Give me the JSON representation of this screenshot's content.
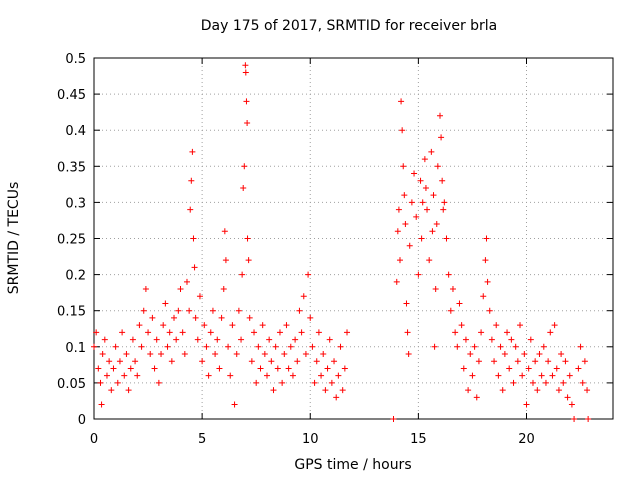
{
  "chart_data": {
    "type": "scatter",
    "title": "Day 175 of 2017, SRMTID for receiver brla",
    "xlabel": "GPS time / hours",
    "ylabel": "SRMTID / TECUs",
    "xlim": [
      0,
      24
    ],
    "ylim": [
      0,
      0.5
    ],
    "x_ticks": [
      0,
      5,
      10,
      15,
      20
    ],
    "x_tick_labels": [
      "0",
      "5",
      "10",
      "15",
      "20"
    ],
    "y_ticks": [
      0,
      0.05,
      0.1,
      0.15,
      0.2,
      0.25,
      0.3,
      0.35,
      0.4,
      0.45,
      0.5
    ],
    "y_tick_labels": [
      "0",
      "0.05",
      "0.1",
      "0.15",
      "0.2",
      "0.25",
      "0.3",
      "0.35",
      "0.4",
      "0.45",
      "0.5"
    ],
    "grid": true,
    "marker": "+",
    "series": [
      {
        "name": "SRMTID",
        "color": "#ff0000",
        "points": [
          [
            0.0,
            0.1
          ],
          [
            0.1,
            0.12
          ],
          [
            0.2,
            0.07
          ],
          [
            0.3,
            0.05
          ],
          [
            0.35,
            0.02
          ],
          [
            0.4,
            0.09
          ],
          [
            0.5,
            0.11
          ],
          [
            0.6,
            0.06
          ],
          [
            0.7,
            0.08
          ],
          [
            0.8,
            0.04
          ],
          [
            0.9,
            0.07
          ],
          [
            1.0,
            0.1
          ],
          [
            1.1,
            0.05
          ],
          [
            1.2,
            0.08
          ],
          [
            1.3,
            0.12
          ],
          [
            1.4,
            0.06
          ],
          [
            1.5,
            0.09
          ],
          [
            1.6,
            0.04
          ],
          [
            1.7,
            0.07
          ],
          [
            1.8,
            0.11
          ],
          [
            1.9,
            0.08
          ],
          [
            2.0,
            0.06
          ],
          [
            2.1,
            0.13
          ],
          [
            2.2,
            0.1
          ],
          [
            2.3,
            0.15
          ],
          [
            2.4,
            0.18
          ],
          [
            2.5,
            0.12
          ],
          [
            2.6,
            0.09
          ],
          [
            2.7,
            0.14
          ],
          [
            2.8,
            0.07
          ],
          [
            2.9,
            0.11
          ],
          [
            3.0,
            0.05
          ],
          [
            3.1,
            0.09
          ],
          [
            3.2,
            0.13
          ],
          [
            3.3,
            0.16
          ],
          [
            3.4,
            0.1
          ],
          [
            3.5,
            0.12
          ],
          [
            3.6,
            0.08
          ],
          [
            3.7,
            0.14
          ],
          [
            3.8,
            0.11
          ],
          [
            3.9,
            0.15
          ],
          [
            4.0,
            0.18
          ],
          [
            4.1,
            0.12
          ],
          [
            4.2,
            0.09
          ],
          [
            4.3,
            0.19
          ],
          [
            4.4,
            0.15
          ],
          [
            4.45,
            0.29
          ],
          [
            4.5,
            0.33
          ],
          [
            4.55,
            0.37
          ],
          [
            4.6,
            0.25
          ],
          [
            4.65,
            0.21
          ],
          [
            4.7,
            0.14
          ],
          [
            4.8,
            0.11
          ],
          [
            4.9,
            0.17
          ],
          [
            5.0,
            0.08
          ],
          [
            5.1,
            0.13
          ],
          [
            5.2,
            0.1
          ],
          [
            5.3,
            0.06
          ],
          [
            5.4,
            0.12
          ],
          [
            5.5,
            0.15
          ],
          [
            5.6,
            0.09
          ],
          [
            5.7,
            0.11
          ],
          [
            5.8,
            0.07
          ],
          [
            5.9,
            0.14
          ],
          [
            6.0,
            0.18
          ],
          [
            6.05,
            0.26
          ],
          [
            6.1,
            0.22
          ],
          [
            6.2,
            0.1
          ],
          [
            6.3,
            0.06
          ],
          [
            6.4,
            0.13
          ],
          [
            6.5,
            0.02
          ],
          [
            6.6,
            0.09
          ],
          [
            6.7,
            0.15
          ],
          [
            6.8,
            0.11
          ],
          [
            6.85,
            0.2
          ],
          [
            6.9,
            0.32
          ],
          [
            6.95,
            0.35
          ],
          [
            7.0,
            0.49
          ],
          [
            7.02,
            0.48
          ],
          [
            7.05,
            0.44
          ],
          [
            7.08,
            0.41
          ],
          [
            7.1,
            0.25
          ],
          [
            7.15,
            0.22
          ],
          [
            7.2,
            0.14
          ],
          [
            7.3,
            0.08
          ],
          [
            7.4,
            0.12
          ],
          [
            7.5,
            0.05
          ],
          [
            7.6,
            0.1
          ],
          [
            7.7,
            0.07
          ],
          [
            7.8,
            0.13
          ],
          [
            7.9,
            0.09
          ],
          [
            8.0,
            0.06
          ],
          [
            8.1,
            0.11
          ],
          [
            8.2,
            0.08
          ],
          [
            8.3,
            0.04
          ],
          [
            8.4,
            0.1
          ],
          [
            8.5,
            0.07
          ],
          [
            8.6,
            0.12
          ],
          [
            8.7,
            0.05
          ],
          [
            8.8,
            0.09
          ],
          [
            8.9,
            0.13
          ],
          [
            9.0,
            0.07
          ],
          [
            9.1,
            0.1
          ],
          [
            9.2,
            0.06
          ],
          [
            9.3,
            0.11
          ],
          [
            9.4,
            0.08
          ],
          [
            9.5,
            0.15
          ],
          [
            9.6,
            0.12
          ],
          [
            9.7,
            0.17
          ],
          [
            9.8,
            0.09
          ],
          [
            9.9,
            0.2
          ],
          [
            10.0,
            0.14
          ],
          [
            10.1,
            0.1
          ],
          [
            10.2,
            0.05
          ],
          [
            10.3,
            0.08
          ],
          [
            10.4,
            0.12
          ],
          [
            10.5,
            0.06
          ],
          [
            10.6,
            0.09
          ],
          [
            10.7,
            0.04
          ],
          [
            10.8,
            0.07
          ],
          [
            10.9,
            0.11
          ],
          [
            11.0,
            0.05
          ],
          [
            11.1,
            0.08
          ],
          [
            11.2,
            0.03
          ],
          [
            11.3,
            0.06
          ],
          [
            11.4,
            0.1
          ],
          [
            11.5,
            0.04
          ],
          [
            11.6,
            0.07
          ],
          [
            11.7,
            0.12
          ],
          [
            13.85,
            0.0
          ],
          [
            14.0,
            0.19
          ],
          [
            14.05,
            0.26
          ],
          [
            14.1,
            0.29
          ],
          [
            14.15,
            0.22
          ],
          [
            14.2,
            0.44
          ],
          [
            14.25,
            0.4
          ],
          [
            14.3,
            0.35
          ],
          [
            14.35,
            0.31
          ],
          [
            14.4,
            0.27
          ],
          [
            14.45,
            0.16
          ],
          [
            14.5,
            0.12
          ],
          [
            14.55,
            0.09
          ],
          [
            14.6,
            0.24
          ],
          [
            14.7,
            0.3
          ],
          [
            14.8,
            0.34
          ],
          [
            14.9,
            0.28
          ],
          [
            15.0,
            0.2
          ],
          [
            15.1,
            0.33
          ],
          [
            15.15,
            0.25
          ],
          [
            15.2,
            0.3
          ],
          [
            15.3,
            0.36
          ],
          [
            15.35,
            0.32
          ],
          [
            15.4,
            0.29
          ],
          [
            15.5,
            0.22
          ],
          [
            15.6,
            0.37
          ],
          [
            15.65,
            0.26
          ],
          [
            15.7,
            0.31
          ],
          [
            15.75,
            0.1
          ],
          [
            15.8,
            0.18
          ],
          [
            15.85,
            0.27
          ],
          [
            15.9,
            0.35
          ],
          [
            16.0,
            0.42
          ],
          [
            16.05,
            0.39
          ],
          [
            16.1,
            0.33
          ],
          [
            16.15,
            0.29
          ],
          [
            16.2,
            0.3
          ],
          [
            16.3,
            0.25
          ],
          [
            16.4,
            0.2
          ],
          [
            16.5,
            0.15
          ],
          [
            16.6,
            0.18
          ],
          [
            16.7,
            0.12
          ],
          [
            16.8,
            0.1
          ],
          [
            16.9,
            0.16
          ],
          [
            17.0,
            0.13
          ],
          [
            17.1,
            0.07
          ],
          [
            17.2,
            0.11
          ],
          [
            17.3,
            0.04
          ],
          [
            17.4,
            0.09
          ],
          [
            17.5,
            0.06
          ],
          [
            17.6,
            0.1
          ],
          [
            17.7,
            0.03
          ],
          [
            17.8,
            0.08
          ],
          [
            17.9,
            0.12
          ],
          [
            18.0,
            0.17
          ],
          [
            18.1,
            0.22
          ],
          [
            18.15,
            0.25
          ],
          [
            18.2,
            0.19
          ],
          [
            18.3,
            0.15
          ],
          [
            18.4,
            0.11
          ],
          [
            18.5,
            0.08
          ],
          [
            18.6,
            0.13
          ],
          [
            18.7,
            0.06
          ],
          [
            18.8,
            0.1
          ],
          [
            18.9,
            0.04
          ],
          [
            19.0,
            0.09
          ],
          [
            19.1,
            0.12
          ],
          [
            19.2,
            0.07
          ],
          [
            19.3,
            0.11
          ],
          [
            19.4,
            0.05
          ],
          [
            19.5,
            0.1
          ],
          [
            19.6,
            0.08
          ],
          [
            19.7,
            0.13
          ],
          [
            19.8,
            0.06
          ],
          [
            19.9,
            0.09
          ],
          [
            20.0,
            0.02
          ],
          [
            20.1,
            0.07
          ],
          [
            20.2,
            0.11
          ],
          [
            20.3,
            0.05
          ],
          [
            20.4,
            0.08
          ],
          [
            20.5,
            0.04
          ],
          [
            20.6,
            0.09
          ],
          [
            20.7,
            0.06
          ],
          [
            20.8,
            0.1
          ],
          [
            20.9,
            0.05
          ],
          [
            21.0,
            0.08
          ],
          [
            21.1,
            0.12
          ],
          [
            21.2,
            0.06
          ],
          [
            21.3,
            0.13
          ],
          [
            21.4,
            0.07
          ],
          [
            21.5,
            0.04
          ],
          [
            21.6,
            0.09
          ],
          [
            21.7,
            0.05
          ],
          [
            21.8,
            0.08
          ],
          [
            21.9,
            0.03
          ],
          [
            22.0,
            0.06
          ],
          [
            22.1,
            0.02
          ],
          [
            22.2,
            0.0
          ],
          [
            22.4,
            0.07
          ],
          [
            22.5,
            0.1
          ],
          [
            22.6,
            0.05
          ],
          [
            22.7,
            0.08
          ],
          [
            22.8,
            0.04
          ],
          [
            22.85,
            0.0
          ]
        ]
      }
    ]
  }
}
